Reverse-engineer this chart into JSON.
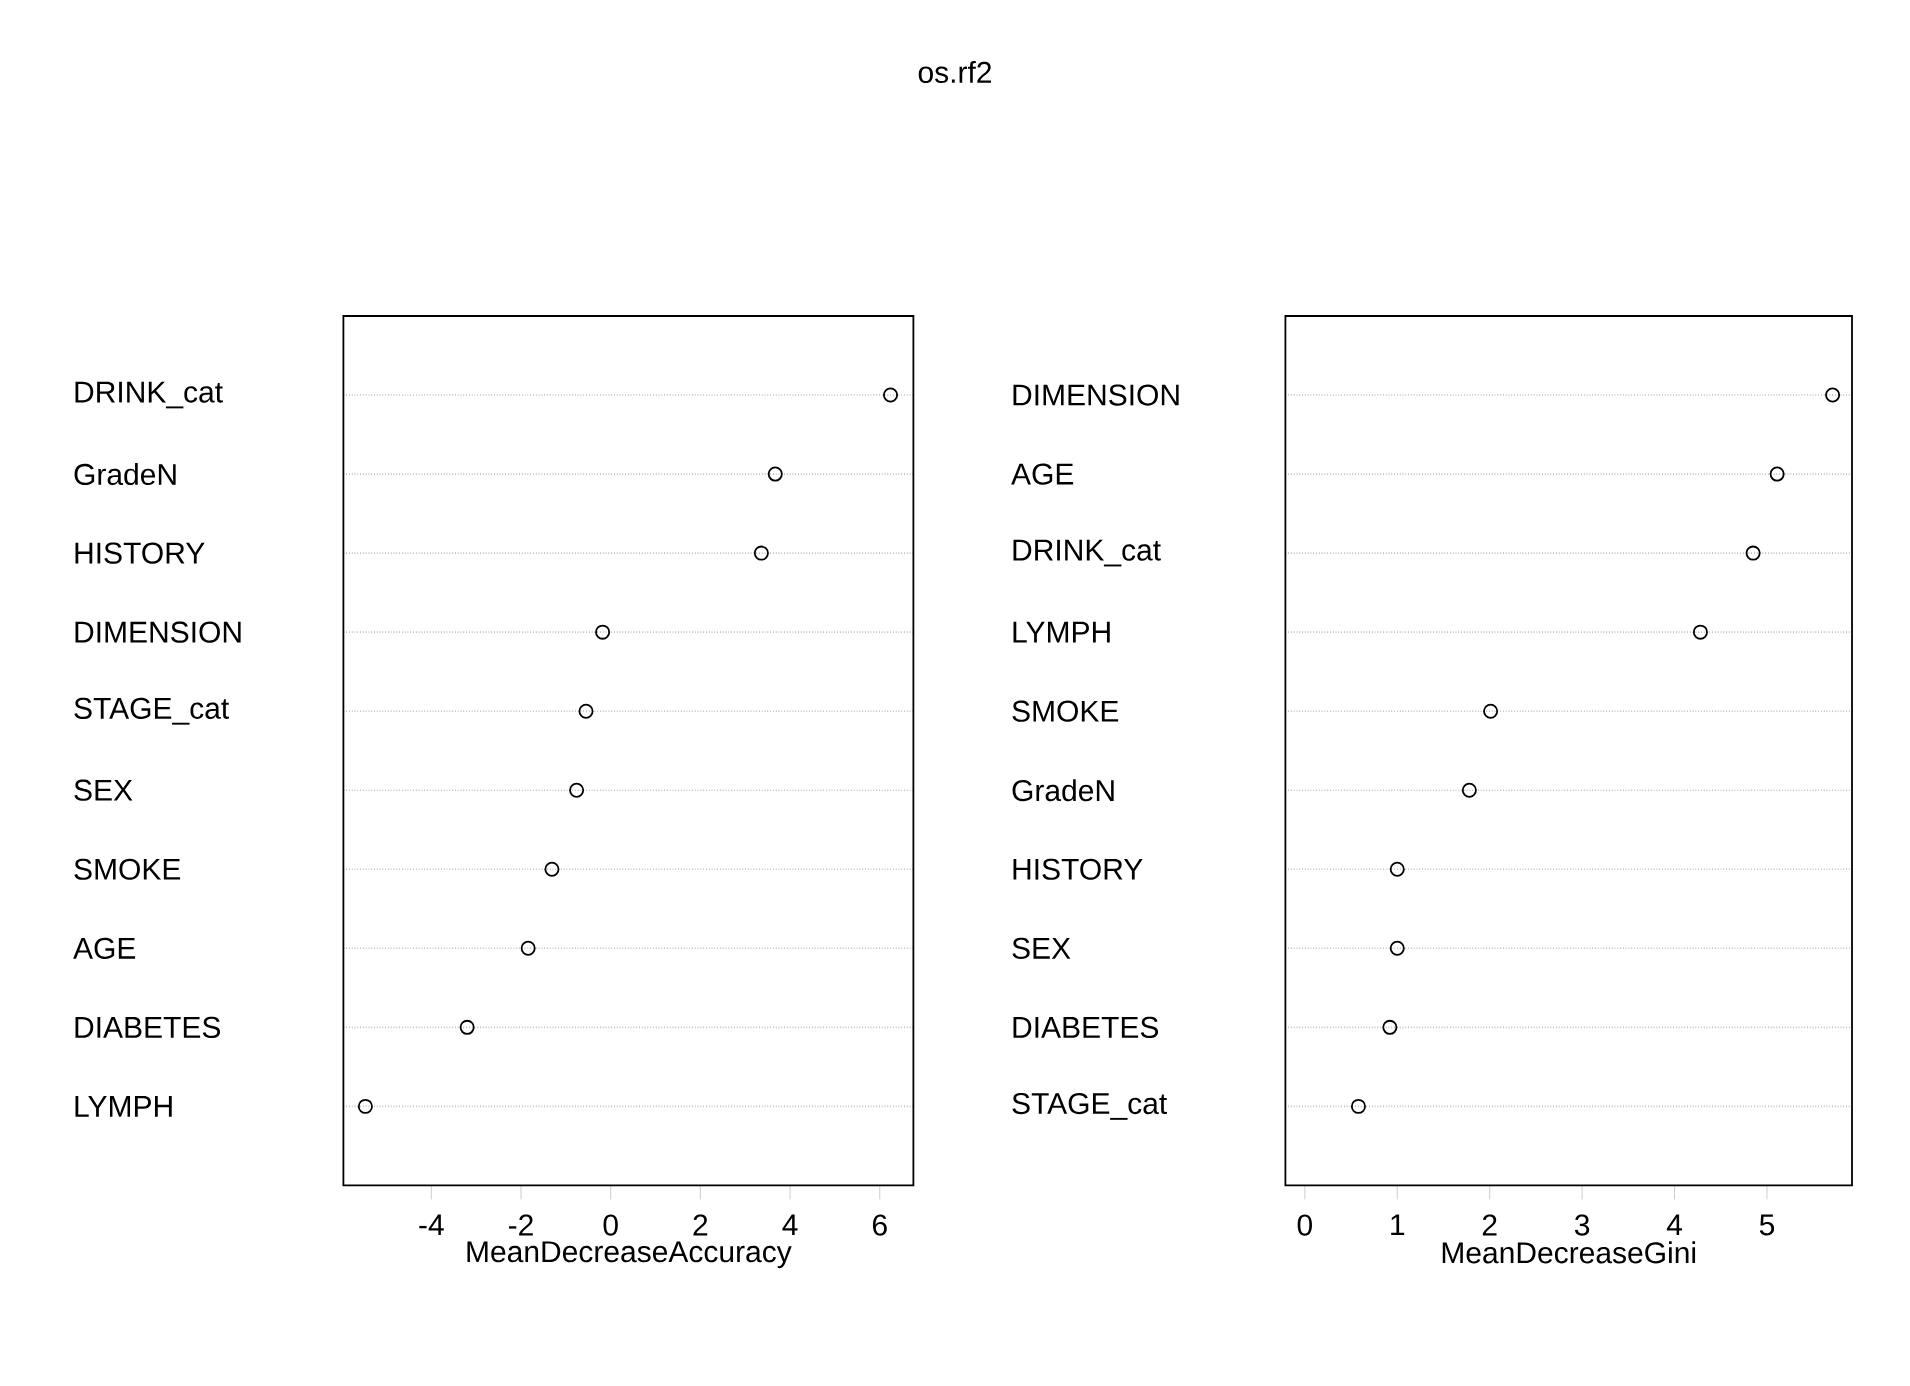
{
  "chart_data": [
    {
      "type": "scatter",
      "orientation": "horizontal",
      "title": "os.rf2",
      "xlabel": "MeanDecreaseAccuracy",
      "categories": [
        "DRINK_cat",
        "GradeN",
        "HISTORY",
        "DIMENSION",
        "STAGE_cat",
        "SEX",
        "SMOKE",
        "AGE",
        "DIABETES",
        "LYMPH"
      ],
      "values": [
        6.24,
        3.67,
        3.36,
        -0.18,
        -0.55,
        -0.76,
        -1.31,
        -1.84,
        -3.2,
        -5.47
      ],
      "color": "#000000",
      "marker": "circle",
      "grid": "y",
      "xlim": [
        -5.96,
        6.75
      ],
      "xticks": [
        -4,
        -2,
        0,
        2,
        4,
        6
      ]
    },
    {
      "type": "scatter",
      "orientation": "horizontal",
      "xlabel": "MeanDecreaseGini",
      "categories": [
        "DIMENSION",
        "AGE",
        "DRINK_cat",
        "LYMPH",
        "SMOKE",
        "GradeN",
        "HISTORY",
        "SEX",
        "DIABETES",
        "STAGE_cat"
      ],
      "values": [
        5.71,
        5.11,
        4.85,
        4.28,
        2.01,
        1.78,
        1.0,
        1.0,
        0.92,
        0.58
      ],
      "color": "#000000",
      "marker": "circle",
      "grid": "y",
      "xlim": [
        -0.21,
        5.92
      ],
      "xticks": [
        0,
        1,
        2,
        3,
        4,
        5
      ]
    }
  ]
}
